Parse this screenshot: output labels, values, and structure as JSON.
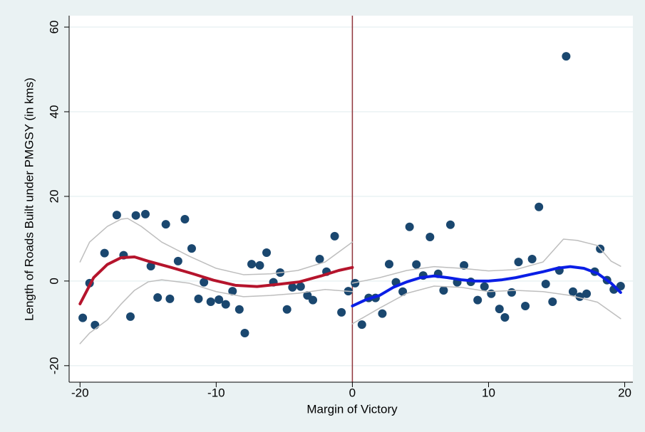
{
  "chart_data": {
    "type": "scatter",
    "xlabel": "Margin of Victory",
    "ylabel": "Length of Roads Built under PMGSY (in kms)",
    "xlim": [
      -20.8,
      20.6
    ],
    "ylim": [
      -23.9,
      62.7
    ],
    "xticks": [
      -20,
      -10,
      0,
      10,
      20
    ],
    "yticks": [
      -20,
      0,
      20,
      40,
      60
    ],
    "grid": true,
    "color": "#1a476f",
    "vline": 0,
    "vline_color": "#90353b",
    "x": [
      -19.8,
      -19.3,
      -18.9,
      -18.2,
      -17.3,
      -16.8,
      -16.3,
      -15.9,
      -15.2,
      -14.8,
      -14.3,
      -13.7,
      -13.4,
      -12.8,
      -12.3,
      -11.8,
      -11.3,
      -10.9,
      -10.4,
      -9.8,
      -9.3,
      -8.8,
      -8.3,
      -7.9,
      -7.4,
      -6.8,
      -6.3,
      -5.8,
      -5.3,
      -4.8,
      -4.4,
      -3.8,
      -3.3,
      -2.9,
      -2.4,
      -1.9,
      -1.3,
      -0.8,
      -0.3,
      0.2,
      0.7,
      1.2,
      1.7,
      2.2,
      2.7,
      3.2,
      3.7,
      4.2,
      4.7,
      5.2,
      5.7,
      6.3,
      6.7,
      7.2,
      7.7,
      8.2,
      8.7,
      9.2,
      9.7,
      10.2,
      10.8,
      11.2,
      11.7,
      12.2,
      12.7,
      13.2,
      13.7,
      14.2,
      14.7,
      15.2,
      15.7,
      16.2,
      16.7,
      17.2,
      17.8,
      18.2,
      18.7,
      19.2,
      19.7
    ],
    "values": [
      -8.7,
      -0.5,
      -10.4,
      6.6,
      15.6,
      6.1,
      -8.4,
      15.5,
      15.8,
      3.5,
      -3.9,
      13.4,
      -4.2,
      4.7,
      14.6,
      7.7,
      -4.2,
      -0.3,
      -4.9,
      -4.4,
      -5.5,
      -2.4,
      -6.7,
      -12.3,
      4.0,
      3.7,
      6.7,
      -0.3,
      2.0,
      -6.7,
      -1.5,
      -1.3,
      -3.4,
      -4.5,
      5.2,
      2.2,
      10.6,
      -7.4,
      -2.4,
      -0.5,
      -10.3,
      -4.0,
      -4.0,
      -7.7,
      4.0,
      -0.3,
      -2.5,
      12.8,
      3.9,
      1.3,
      10.4,
      1.7,
      -2.2,
      13.3,
      -0.3,
      3.7,
      -0.2,
      -4.5,
      -1.3,
      -3.0,
      -6.6,
      -8.6,
      -2.7,
      4.5,
      -5.9,
      5.2,
      17.5,
      -0.7,
      -4.9,
      2.5,
      53.1,
      -2.5,
      -3.7,
      -3.0,
      2.2,
      7.6,
      0.2,
      -2.0,
      -1.2
    ],
    "fits": [
      {
        "color": "#bebebe",
        "width": 1.5,
        "x": [
          -20,
          -19.3,
          -18,
          -17,
          -16.5,
          -15.5,
          -14,
          -12,
          -10,
          -8,
          -6,
          -4,
          -2,
          0
        ],
        "values": [
          4.5,
          9.2,
          12.9,
          14.6,
          14.8,
          12.9,
          9.2,
          5.9,
          3.0,
          1.5,
          1.7,
          2.5,
          4.5,
          9.2
        ]
      },
      {
        "color": "#bebebe",
        "width": 1.5,
        "x": [
          -20,
          -19.3,
          -18,
          -17,
          -16,
          -15,
          -14,
          -12,
          -10,
          -8,
          -6,
          -4,
          -2,
          0
        ],
        "values": [
          -14.8,
          -12.3,
          -9.2,
          -5.5,
          -2.2,
          -0.2,
          0.3,
          -0.5,
          -2.5,
          -3.7,
          -3.4,
          -2.9,
          -2.0,
          -2.5
        ]
      },
      {
        "color": "#bebebe",
        "width": 1.5,
        "x": [
          0,
          2,
          4,
          6,
          8,
          10,
          12,
          14,
          15.5,
          16.5,
          18,
          19,
          19.7
        ],
        "values": [
          -0.5,
          0.8,
          2.5,
          3.4,
          3.0,
          2.4,
          2.7,
          4.5,
          9.9,
          9.6,
          8.4,
          4.7,
          3.5
        ]
      },
      {
        "color": "#bebebe",
        "width": 1.5,
        "x": [
          0,
          2,
          4,
          6,
          8,
          10,
          12,
          14,
          16,
          18,
          19.7
        ],
        "values": [
          -10.1,
          -6.4,
          -2.9,
          -1.2,
          -1.5,
          -2.5,
          -2.2,
          -2.5,
          -3.4,
          -5.0,
          -8.9
        ]
      },
      {
        "color": "#b5142c",
        "width": 4,
        "x": [
          -20,
          -19,
          -18,
          -17,
          -16,
          -15,
          -13.3,
          -11.7,
          -10.2,
          -8.6,
          -7,
          -5.5,
          -3.9,
          -2.3,
          -1,
          0
        ],
        "values": [
          -5.4,
          0.8,
          3.9,
          5.5,
          5.7,
          4.7,
          3.2,
          1.7,
          0.2,
          -1.0,
          -1.3,
          -0.8,
          -0.2,
          1.2,
          2.5,
          3.2
        ]
      },
      {
        "color": "#0a1ee6",
        "width": 4,
        "x": [
          0,
          1,
          2,
          3,
          4,
          5,
          6,
          7,
          8,
          9,
          10,
          11,
          12,
          13,
          14,
          15,
          16,
          17,
          18,
          19,
          19.7
        ],
        "values": [
          -5.9,
          -4.4,
          -3.4,
          -1.5,
          -0.2,
          0.8,
          1.2,
          0.8,
          0.3,
          0,
          0,
          0.3,
          0.8,
          1.5,
          2.2,
          3.0,
          3.4,
          3.0,
          1.8,
          -0.5,
          -2.7
        ]
      }
    ]
  }
}
